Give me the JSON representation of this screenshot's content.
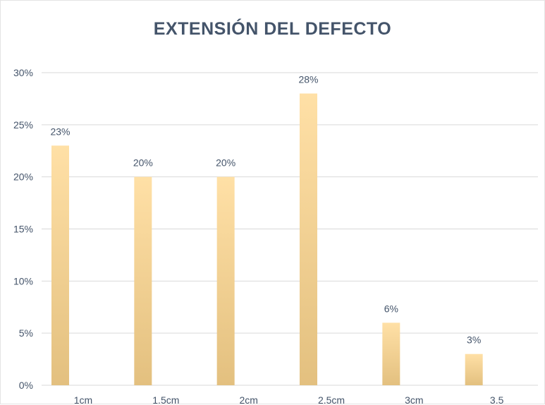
{
  "chart_data": {
    "type": "bar",
    "title": "EXTENSIÓN DEL DEFECTO",
    "categories": [
      "1cm",
      "1.5cm",
      "2cm",
      "2.5cm",
      "3cm",
      "3.5"
    ],
    "values": [
      23,
      20,
      20,
      28,
      6,
      3
    ],
    "data_labels": [
      "23%",
      "20%",
      "20%",
      "28%",
      "6%",
      "3%"
    ],
    "ylim": [
      0,
      30
    ],
    "yticks": [
      0,
      5,
      10,
      15,
      20,
      25,
      30
    ],
    "ytick_labels": [
      "0%",
      "5%",
      "10%",
      "15%",
      "20%",
      "25%",
      "30%"
    ],
    "xlabel": "",
    "ylabel": "",
    "grid": true,
    "legend": "none",
    "colors": {
      "bar_top": "#ffe0a6",
      "bar_bottom": "#e3c07f",
      "grid": "#d9d9d9",
      "text": "#44546a"
    }
  }
}
